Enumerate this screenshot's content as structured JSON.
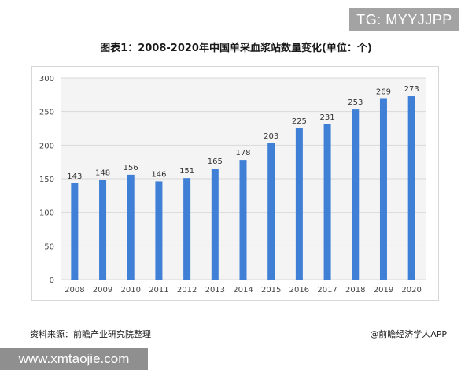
{
  "watermark_badge": "TG: MYYJJPP",
  "source": "资料来源：前瞻产业研究院整理",
  "brand": "@前瞻经济学人APP",
  "url_badge": "www.xmtaojie.com",
  "colors": {
    "bar": "#3f7fd6",
    "grid": "#d9d9d9",
    "plot_bg": "#f4f4f4"
  },
  "chart_data": {
    "type": "bar",
    "title": "图表1：2008-2020年中国单采血浆站数量变化(单位：个)",
    "xlabel": "",
    "ylabel": "",
    "ylim": [
      0,
      300
    ],
    "yticks": [
      0,
      50,
      100,
      150,
      200,
      250,
      300
    ],
    "grid": true,
    "categories": [
      "2008",
      "2009",
      "2010",
      "2011",
      "2012",
      "2013",
      "2014",
      "2015",
      "2016",
      "2017",
      "2018",
      "2019",
      "2020"
    ],
    "values": [
      143,
      148,
      156,
      146,
      151,
      165,
      178,
      203,
      225,
      231,
      253,
      269,
      273
    ]
  }
}
